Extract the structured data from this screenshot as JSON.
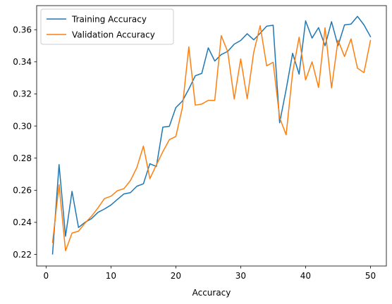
{
  "chart_data": {
    "type": "line",
    "title": "",
    "xlabel": "Accuracy",
    "ylabel": "",
    "xlim": [
      -1.45,
      52.45
    ],
    "ylim": [
      0.2128,
      0.375
    ],
    "xticks": [
      0,
      10,
      20,
      30,
      40,
      50
    ],
    "yticks": [
      0.22,
      0.24,
      0.26,
      0.28,
      0.3,
      0.32,
      0.34,
      0.36
    ],
    "grid": false,
    "legend_position": "upper-left",
    "x": [
      1,
      2,
      3,
      4,
      5,
      6,
      7,
      8,
      9,
      10,
      11,
      12,
      13,
      14,
      15,
      16,
      17,
      18,
      19,
      20,
      21,
      22,
      23,
      24,
      25,
      26,
      27,
      28,
      29,
      30,
      31,
      32,
      33,
      34,
      35,
      36,
      37,
      38,
      39,
      40,
      41,
      42,
      43,
      44,
      45,
      46,
      47,
      48,
      49,
      50
    ],
    "series": [
      {
        "name": "Training Accuracy",
        "color": "#1f77b4",
        "values": [
          0.2203,
          0.276,
          0.2313,
          0.2593,
          0.2368,
          0.24,
          0.2423,
          0.2462,
          0.2483,
          0.2508,
          0.2543,
          0.2577,
          0.2585,
          0.2625,
          0.264,
          0.2765,
          0.2748,
          0.2993,
          0.2998,
          0.3115,
          0.3155,
          0.323,
          0.3313,
          0.3328,
          0.3487,
          0.3405,
          0.3445,
          0.3465,
          0.351,
          0.3533,
          0.3575,
          0.3537,
          0.3578,
          0.3622,
          0.3628,
          0.302,
          0.3227,
          0.3453,
          0.3323,
          0.3655,
          0.3548,
          0.3613,
          0.35,
          0.365,
          0.35,
          0.363,
          0.3635,
          0.3683,
          0.363,
          0.3557
        ]
      },
      {
        "name": "Validation Accuracy",
        "color": "#ff7f0e",
        "values": [
          0.2275,
          0.2635,
          0.2223,
          0.2333,
          0.2345,
          0.2395,
          0.2438,
          0.249,
          0.2548,
          0.2563,
          0.2597,
          0.261,
          0.266,
          0.2742,
          0.2875,
          0.2672,
          0.2758,
          0.284,
          0.2915,
          0.2935,
          0.3113,
          0.3493,
          0.313,
          0.3137,
          0.316,
          0.316,
          0.3563,
          0.3463,
          0.3168,
          0.3418,
          0.317,
          0.3458,
          0.3625,
          0.3375,
          0.3397,
          0.3052,
          0.2945,
          0.3333,
          0.3553,
          0.3287,
          0.34,
          0.324,
          0.3612,
          0.3237,
          0.3535,
          0.3433,
          0.3543,
          0.336,
          0.3333,
          0.3533
        ]
      }
    ]
  }
}
